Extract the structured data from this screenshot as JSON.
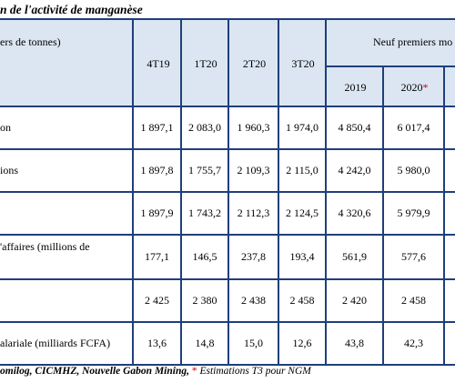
{
  "title": "n de l'activité de manganèse",
  "header": {
    "unit": "ers de tonnes)",
    "cols": [
      "4T19",
      "1T20",
      "2T20",
      "3T20"
    ],
    "group": "Neuf premiers mo",
    "sub_2019": "2019",
    "sub_2020": "2020",
    "sub_2020_mark": "*"
  },
  "rows": [
    {
      "label": "on",
      "values": [
        "1 897,1",
        "2 083,0",
        "1 960,3",
        "1 974,0",
        "4 850,4",
        "6 017,4"
      ]
    },
    {
      "label": "ions",
      "values": [
        "1 897,8",
        "1 755,7",
        "2 109,3",
        "2 115,0",
        "4 242,0",
        "5 980,0"
      ]
    },
    {
      "label": "",
      "values": [
        "1 897,9",
        "1 743,2",
        "2 112,3",
        "2 124,5",
        "4 320,6",
        "5 979,9"
      ]
    },
    {
      "label": "'affaires (millions de",
      "values": [
        "177,1",
        "146,5",
        "237,8",
        "193,4",
        "561,9",
        "577,6"
      ]
    },
    {
      "label": "",
      "values": [
        "2 425",
        "2 380",
        "2 438",
        "2 458",
        "2 420",
        "2 458"
      ]
    },
    {
      "label": "alariale (milliards FCFA)",
      "values": [
        "13,6",
        "14,8",
        "15,0",
        "12,6",
        "43,8",
        "42,3"
      ]
    }
  ],
  "footnote": {
    "sources": "omilog, CICMHZ, Nouvelle Gabon Mining,",
    "asterisk": "*",
    "text": "Estimations T3 pour NGM"
  },
  "colors": {
    "border": "#1f3f7a",
    "header_bg": "#dce6f2",
    "asterisk": "#cc0000"
  }
}
